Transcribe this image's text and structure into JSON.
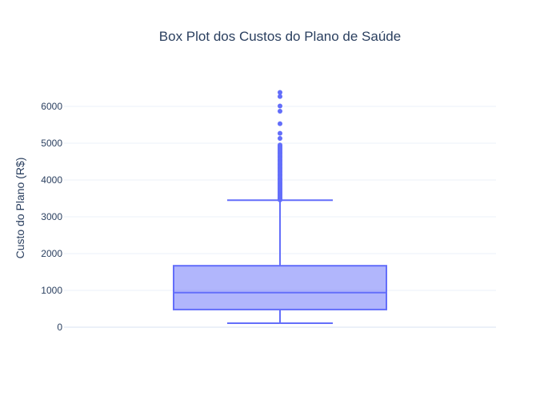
{
  "chart_data": {
    "type": "box",
    "title": "Box Plot dos Custos do Plano de Saúde",
    "xlabel": "",
    "ylabel": "Custo do Plano (R$)",
    "ylim": [
      -100,
      6600
    ],
    "yticks": [
      0,
      1000,
      2000,
      3000,
      4000,
      5000,
      6000
    ],
    "ytick_labels": [
      "0",
      "1000",
      "2000",
      "3000",
      "4000",
      "5000",
      "6000"
    ],
    "grid": true,
    "box": {
      "min": 110,
      "q1": 480,
      "median": 940,
      "q3": 1670,
      "upper_fence": 3450
    },
    "outliers": [
      3460,
      3480,
      3500,
      3520,
      3550,
      3580,
      3600,
      3630,
      3660,
      3690,
      3720,
      3750,
      3780,
      3810,
      3840,
      3870,
      3900,
      3930,
      3960,
      4000,
      4030,
      4060,
      4100,
      4130,
      4160,
      4200,
      4230,
      4260,
      4300,
      4330,
      4360,
      4400,
      4430,
      4460,
      4500,
      4530,
      4560,
      4600,
      4630,
      4660,
      4700,
      4730,
      4760,
      4800,
      4830,
      4860,
      4890,
      4920,
      4950,
      5130,
      5270,
      5530,
      5870,
      6010,
      6270,
      6380
    ],
    "colors": {
      "line": "#636efa",
      "fill": "#636efa",
      "fill_opacity": 0.5,
      "grid": "#ebf0f8",
      "zeroline": "#ebf0f8",
      "text": "#2a3f5f"
    }
  }
}
